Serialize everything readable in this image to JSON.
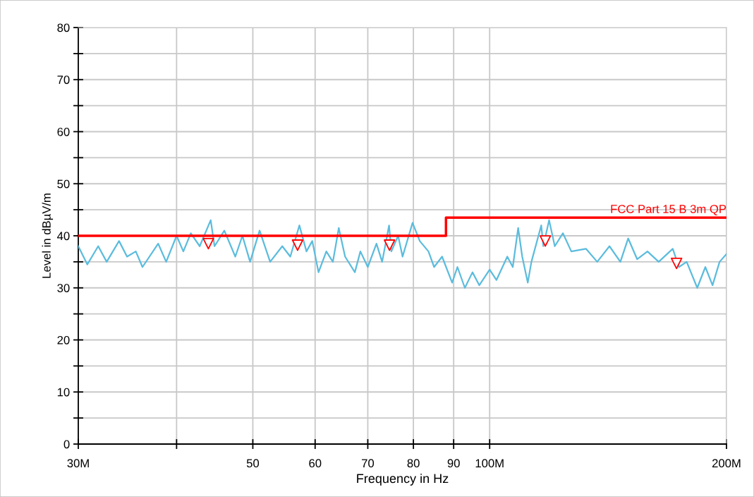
{
  "chart_data": {
    "type": "line",
    "xlabel": "Frequency in Hz",
    "ylabel": "Level in dBµV/m",
    "log": "x",
    "xlim": [
      30,
      200
    ],
    "ylim": [
      0,
      80
    ],
    "xticks": [
      {
        "value": 30,
        "label": "30M"
      },
      {
        "value": 40,
        "label": null
      },
      50,
      60,
      70,
      80,
      90,
      {
        "value": 100,
        "label": "100M"
      },
      {
        "value": 200,
        "label": "200M"
      }
    ],
    "yticks": [
      0,
      {
        "value": 5,
        "label": null
      },
      10,
      {
        "value": 15,
        "label": null
      },
      20,
      {
        "value": 25,
        "label": null
      },
      30,
      {
        "value": 35,
        "label": null
      },
      40,
      {
        "value": 45,
        "label": null
      },
      50,
      {
        "value": 55,
        "label": null
      },
      60,
      {
        "value": 65,
        "label": null
      },
      70,
      {
        "value": 75,
        "label": null
      },
      80
    ],
    "grid": true,
    "legend": false,
    "series": [
      {
        "color": "#5bbcdd",
        "marker": "none",
        "line_style": "solid",
        "x": [
          30,
          30.8,
          31.8,
          32.6,
          33.8,
          34.6,
          35.5,
          36.2,
          37.9,
          38.8,
          40,
          40.8,
          41.7,
          42.8,
          44.2,
          44.7,
          46,
          47.5,
          48.5,
          49.6,
          51,
          52.6,
          54.5,
          55.8,
          57.3,
          58.5,
          59.5,
          60.6,
          62,
          63.2,
          64.3,
          65.5,
          67.4,
          68.5,
          70,
          71.8,
          73,
          74.5,
          75,
          76.5,
          77.5,
          79.8,
          81.5,
          83.6,
          85,
          87,
          89.6,
          91,
          93,
          95.1,
          97,
          100,
          102,
          105.3,
          107,
          108.7,
          110,
          111.8,
          113,
          116.3,
          117,
          119,
          121,
          123.9,
          127,
          132.6,
          137,
          142,
          146.6,
          150,
          154,
          158.7,
          164,
          170.9,
          174,
          178,
          183.6,
          188,
          192,
          196,
          200
        ],
        "values": [
          38,
          34.5,
          38,
          35,
          39,
          36,
          37,
          34,
          38.5,
          35,
          40,
          37,
          40.5,
          38,
          43,
          38,
          41,
          36,
          40,
          35,
          41,
          35,
          38,
          36,
          42,
          37,
          39,
          33,
          37,
          35,
          41.5,
          36,
          33,
          37,
          34,
          38.5,
          35,
          42,
          37,
          40,
          36,
          42.5,
          39,
          37,
          34,
          36,
          31,
          34,
          30,
          33,
          30.5,
          33.5,
          31.5,
          36,
          34,
          41.5,
          36,
          31,
          35,
          42,
          38,
          43,
          38,
          40.5,
          37,
          37.5,
          35,
          38,
          35,
          39.5,
          35.5,
          37,
          35,
          37.5,
          34,
          35,
          30,
          34,
          30.5,
          35,
          36.5
        ]
      },
      {
        "type": "step",
        "name": "FCC Part 15 B 3m QP",
        "color": "#ff0000",
        "marker": "none",
        "line_style": "solid",
        "x": [
          30,
          88,
          200
        ],
        "values": [
          40,
          43.5,
          43.5
        ]
      },
      {
        "type": "scatter",
        "color": "#ff0000",
        "marker": "triangle",
        "x": [
          43.9,
          57,
          74.6,
          117.7,
          172.8
        ],
        "values": [
          38.5,
          38.2,
          38.2,
          39.0,
          34.7
        ]
      }
    ]
  }
}
